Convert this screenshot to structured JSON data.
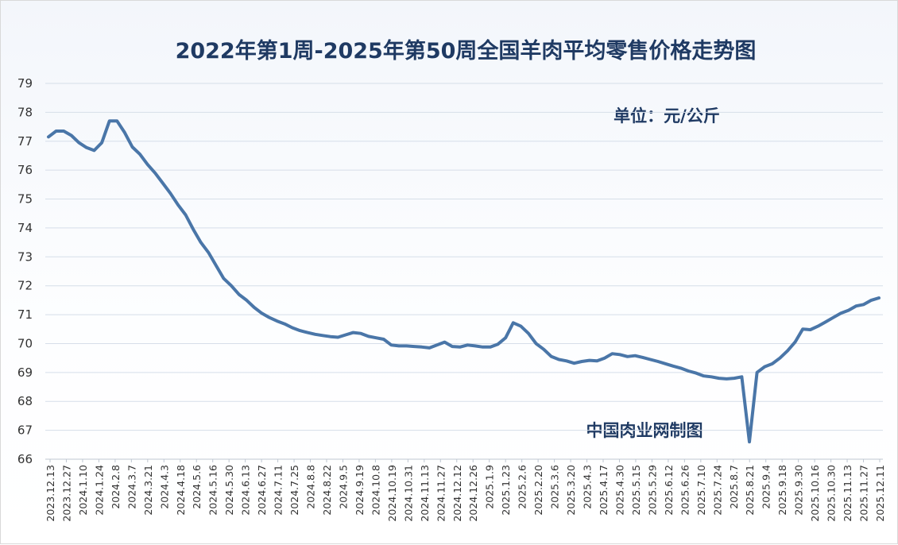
{
  "chart_data": {
    "type": "line",
    "title": "2022年第1周-2025年第50周全国羊肉平均零售价格走势图",
    "unit_label": "单位：元/公斤",
    "watermark": "中国肉业网制图",
    "xlabel": "",
    "ylabel": "",
    "ylim": [
      66,
      79
    ],
    "yticks": [
      66,
      67,
      68,
      69,
      70,
      71,
      72,
      73,
      74,
      75,
      76,
      77,
      78,
      79
    ],
    "grid": true,
    "colors": {
      "line": "#4a76a8",
      "grid": "#d6dee9",
      "text": "#1f3a63"
    },
    "x_tick_labels": [
      "2023.12.13",
      "2023.12.27",
      "2024.1.10",
      "2024.1.24",
      "2024.2.8",
      "2024.3.7",
      "2024.3.21",
      "2024.4.3",
      "2024.4.18",
      "2024.5.6",
      "2024.5.16",
      "2024.5.30",
      "2024.6.13",
      "2024.6.27",
      "2024.7.11",
      "2024.7.25",
      "2024.8.8",
      "2024.8.22",
      "2024.9.5",
      "2024.9.19",
      "2024.10.8",
      "2024.10.19",
      "2024.10.31",
      "2024.11.13",
      "2024.11.27",
      "2024.12.12",
      "2024.12.26",
      "2025.1.9",
      "2025.1.23",
      "2025.2.6",
      "2025.2.20",
      "2025.3.6",
      "2025.3.20",
      "2025.4.3",
      "2025.4.17",
      "2025.4.30",
      "2025.5.15",
      "2025.5.29",
      "2025.6.12",
      "2025.6.26",
      "2025.7.10",
      "2025.7.24",
      "2025.8.7",
      "2025.8.21",
      "2025.9.4",
      "2025.9.18",
      "2025.9.30",
      "2025.10.16",
      "2025.10.30",
      "2025.11.13",
      "2025.11.27",
      "2025.12.11"
    ],
    "series": [
      {
        "values": [
          77.15,
          77.35,
          77.35,
          77.2,
          76.95,
          76.78,
          76.68,
          76.95,
          77.7,
          77.7,
          77.3,
          76.8,
          76.55,
          76.2,
          75.9,
          75.55,
          75.2,
          74.8,
          74.45,
          73.95,
          73.5,
          73.15,
          72.7,
          72.25,
          72.0,
          71.7,
          71.5,
          71.25,
          71.05,
          70.9,
          70.78,
          70.68,
          70.55,
          70.45,
          70.38,
          70.32,
          70.28,
          70.24,
          70.22,
          70.3,
          70.38,
          70.35,
          70.25,
          70.2,
          70.15,
          69.95,
          69.92,
          69.92,
          69.9,
          69.88,
          69.85,
          69.95,
          70.05,
          69.9,
          69.88,
          69.95,
          69.92,
          69.88,
          69.88,
          69.98,
          70.2,
          70.72,
          70.6,
          70.35,
          70.0,
          69.8,
          69.55,
          69.45,
          69.4,
          69.32,
          69.38,
          69.42,
          69.4,
          69.5,
          69.65,
          69.62,
          69.55,
          69.58,
          69.52,
          69.45,
          69.38,
          69.3,
          69.22,
          69.15,
          69.05,
          68.98,
          68.88,
          68.85,
          68.8,
          68.78,
          68.8,
          68.85,
          66.6,
          69.0,
          69.2,
          69.3,
          69.5,
          69.75,
          70.05,
          70.5,
          70.48,
          70.6,
          70.75,
          70.9,
          71.05,
          71.15,
          71.3,
          71.35,
          71.5,
          71.58
        ]
      }
    ]
  }
}
